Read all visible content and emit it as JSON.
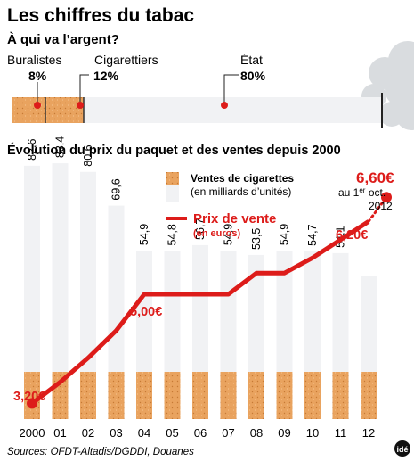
{
  "header": {
    "title": "Les chiffres du tabac",
    "subtitle": "À qui va l’argent?"
  },
  "money_split": {
    "segments": [
      {
        "name": "Buralistes",
        "percent_label": "8%",
        "value": 8
      },
      {
        "name": "Cigarettiers",
        "percent_label": "12%",
        "value": 12
      },
      {
        "name": "État",
        "percent_label": "80%",
        "value": 80
      }
    ]
  },
  "chart_title": "Évolution du prix du paquet et des ventes depuis 2000",
  "legend": {
    "sales_line1": "Ventes de cigarettes",
    "sales_line2": "(en milliards d’unités)",
    "price_line1": "Prix de vente",
    "price_line2": "(en euros)"
  },
  "annotation_2012": {
    "price": "6,60€",
    "line1_pre": "au 1",
    "line1_sup": "er",
    "line1_post": " oct.",
    "line2": "2012"
  },
  "colors": {
    "red": "#dd1c1a",
    "filter": "#e9a35f",
    "smoke": "#d9dcdf",
    "cigarette_white": "#f1f2f4"
  },
  "source": "Sources: OFDT-Altadis/DGDDI, Douanes",
  "logo_text": "idé",
  "chart_data": {
    "type": "bar",
    "categories": [
      "2000",
      "01",
      "02",
      "03",
      "04",
      "05",
      "06",
      "07",
      "08",
      "09",
      "10",
      "11",
      "12"
    ],
    "series": [
      {
        "name": "Ventes de cigarettes",
        "values": [
          82.6,
          83.4,
          80.6,
          69.6,
          54.9,
          54.8,
          56.7,
          54.9,
          53.5,
          54.9,
          54.7,
          54.1,
          null
        ],
        "labels": [
          "82,6",
          "83,4",
          "80,6",
          "69,6",
          "54,9",
          "54,8",
          "56,7",
          "54,9",
          "53,5",
          "54,9",
          "54,7",
          "54,1",
          ""
        ]
      },
      {
        "name": "Prix de vente",
        "values": [
          3.2,
          3.55,
          3.95,
          4.4,
          5.0,
          5.0,
          5.0,
          5.0,
          5.35,
          5.35,
          5.6,
          5.9,
          6.2
        ],
        "labels": {
          "0": "3,20€",
          "4": "5,00€",
          "12": "6,20€"
        },
        "extension": {
          "label": "6,60€",
          "value": 6.6
        }
      }
    ]
  }
}
